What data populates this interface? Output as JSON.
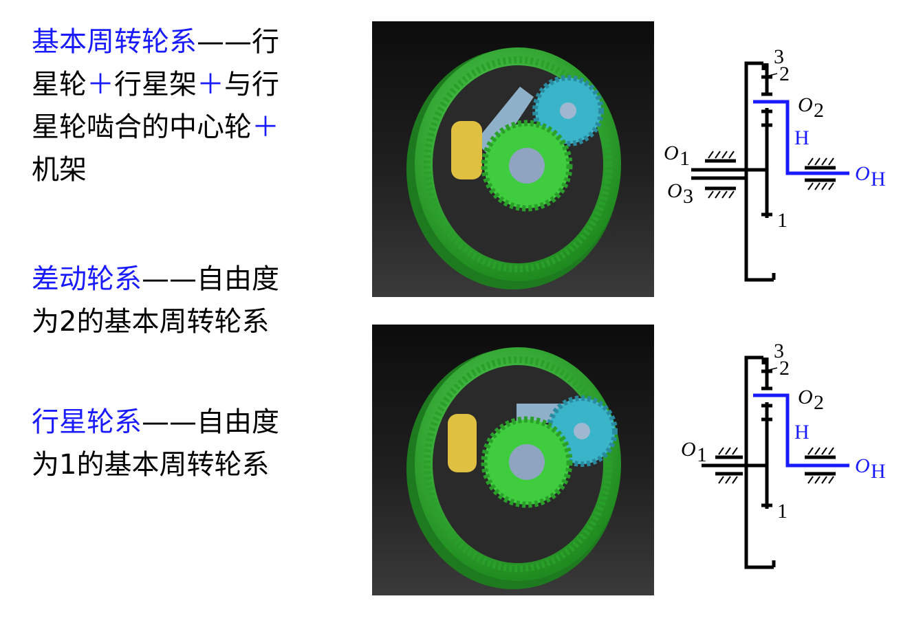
{
  "colors": {
    "accent_blue": "#1a1aff",
    "gear_green": "#3fcc3f",
    "gear_cyan": "#3ab4c8",
    "carrier_gray": "#8eb0c8",
    "pin_yellow": "#e0c040"
  },
  "blocks": [
    {
      "title": "基本周转轮系",
      "dash": "——",
      "desc_lines": [
        "行",
        "星轮",
        "＋",
        "行星架",
        "＋",
        "与行",
        "星轮啮合的中心轮",
        "＋",
        "机架"
      ]
    },
    {
      "title": "差动轮系",
      "dash": "——",
      "desc": "自由度",
      "desc2": "为2的基本周转轮系"
    },
    {
      "title": "行星轮系",
      "dash": "——",
      "desc": "自由度",
      "desc2": "为1的基本周转轮系"
    }
  ],
  "schematic1": {
    "l3": "3",
    "l2": "2",
    "o2": "O",
    "o2sub": "2",
    "h": "H",
    "o1": "O",
    "o1sub": "1",
    "o3": "O",
    "o3sub": "3",
    "oh": "O",
    "ohsub": "H",
    "l1": "1"
  },
  "schematic2": {
    "l3": "3",
    "l2": "2",
    "o2": "O",
    "o2sub": "2",
    "h": "H",
    "o1": "O",
    "o1sub": "1",
    "oh": "O",
    "ohsub": "H",
    "l1": "1"
  }
}
